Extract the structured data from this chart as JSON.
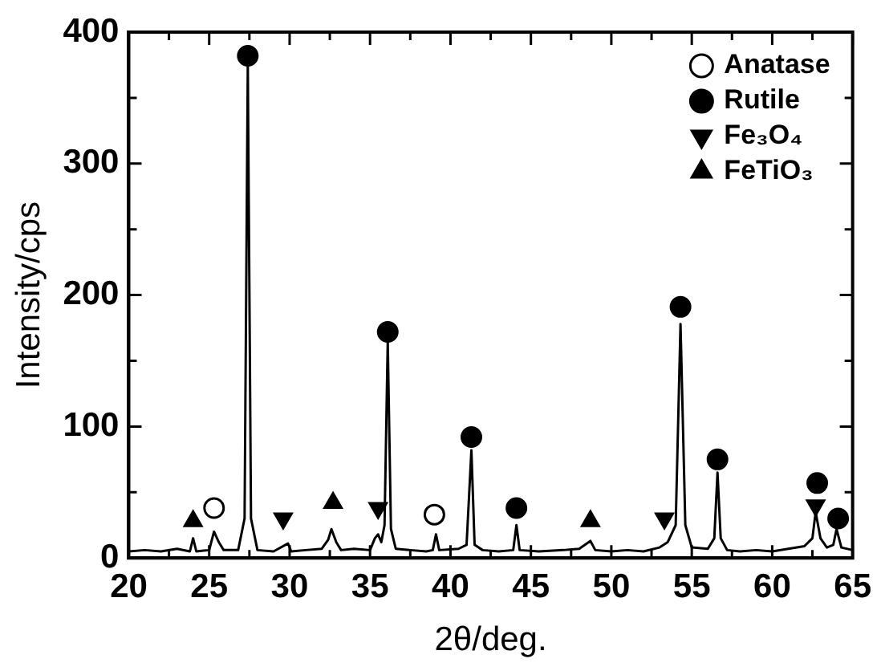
{
  "chart_data": {
    "type": "line",
    "xlabel": "2θ/deg.",
    "ylabel": "Intensity/cps",
    "xlim": [
      20,
      65
    ],
    "xticks": [
      20,
      {
        "value": 22.5,
        "label": null
      },
      25,
      {
        "value": 27.5,
        "label": null
      },
      30,
      {
        "value": 32.5,
        "label": null
      },
      35,
      {
        "value": 37.5,
        "label": null
      },
      40,
      {
        "value": 42.5,
        "label": null
      },
      45,
      {
        "value": 47.5,
        "label": null
      },
      50,
      {
        "value": 52.5,
        "label": null
      },
      55,
      {
        "value": 57.5,
        "label": null
      },
      60,
      {
        "value": 62.5,
        "label": null
      },
      65
    ],
    "ylim": [
      0,
      400
    ],
    "yticks": [
      0,
      {
        "value": 50,
        "label": null
      },
      100,
      {
        "value": 150,
        "label": null
      },
      200,
      {
        "value": 250,
        "label": null
      },
      300,
      {
        "value": 350,
        "label": null
      },
      400
    ],
    "grid": false,
    "legend": "top right",
    "marker": "none",
    "line_style": "solid",
    "series": [
      {
        "color": "#000000",
        "x": [
          20,
          21,
          22,
          23,
          23.8,
          24,
          24.2,
          25,
          25.3,
          25.6,
          25.9,
          26.8,
          27.2,
          27.4,
          27.6,
          28,
          29,
          29.9,
          30.1,
          31,
          32,
          32.4,
          32.6,
          32.9,
          33.2,
          34,
          35,
          35.3,
          35.5,
          35.7,
          35.9,
          36.1,
          36.3,
          36.6,
          37.5,
          38.5,
          38.9,
          39.1,
          39.3,
          40.5,
          41,
          41.3,
          41.5,
          42,
          43,
          43.9,
          44.1,
          44.3,
          45.5,
          47,
          48,
          48.7,
          49,
          50,
          51,
          52,
          53,
          53.5,
          54,
          54.3,
          54.6,
          55,
          56,
          56.4,
          56.6,
          56.8,
          57.2,
          58,
          59,
          60,
          61,
          62,
          62.5,
          62.7,
          63,
          63.4,
          63.8,
          64,
          64.3,
          65
        ],
        "values": [
          5,
          6,
          5,
          7,
          5,
          15,
          5,
          6,
          20,
          12,
          6,
          6,
          30,
          375,
          30,
          6,
          5,
          11,
          5,
          6,
          7,
          14,
          22,
          12,
          6,
          7,
          6,
          15,
          18,
          12,
          25,
          165,
          22,
          7,
          6,
          5,
          6,
          18,
          6,
          7,
          10,
          82,
          10,
          6,
          5,
          6,
          25,
          6,
          5,
          6,
          7,
          13,
          6,
          5,
          6,
          5,
          8,
          12,
          25,
          178,
          25,
          8,
          7,
          15,
          65,
          15,
          6,
          5,
          6,
          5,
          7,
          9,
          15,
          35,
          15,
          8,
          10,
          22,
          8,
          6
        ]
      },
      {
        "name": "Anatase",
        "type": "scatter",
        "marker": "circle",
        "color": "#ffffff",
        "x": [
          25.3,
          39
        ],
        "values": [
          38,
          33
        ]
      },
      {
        "name": "Rutile",
        "type": "scatter",
        "marker": "circle",
        "color": "#000000",
        "x": [
          27.4,
          36.1,
          41.3,
          44.1,
          54.3,
          56.6,
          62.8,
          64.1
        ],
        "values": [
          382,
          172,
          92,
          38,
          191,
          75,
          57,
          30
        ]
      },
      {
        "name": "Fe₃O₄",
        "type": "scatter",
        "marker": "triangle_down",
        "color": "#000000",
        "x": [
          29.6,
          35.5,
          53.3,
          62.7
        ],
        "values": [
          30,
          38,
          30,
          40
        ]
      },
      {
        "name": "FeTiO₃",
        "type": "scatter",
        "marker": "triangle",
        "color": "#000000",
        "x": [
          24,
          32.7,
          48.7
        ],
        "values": [
          28,
          42,
          28
        ]
      }
    ]
  }
}
